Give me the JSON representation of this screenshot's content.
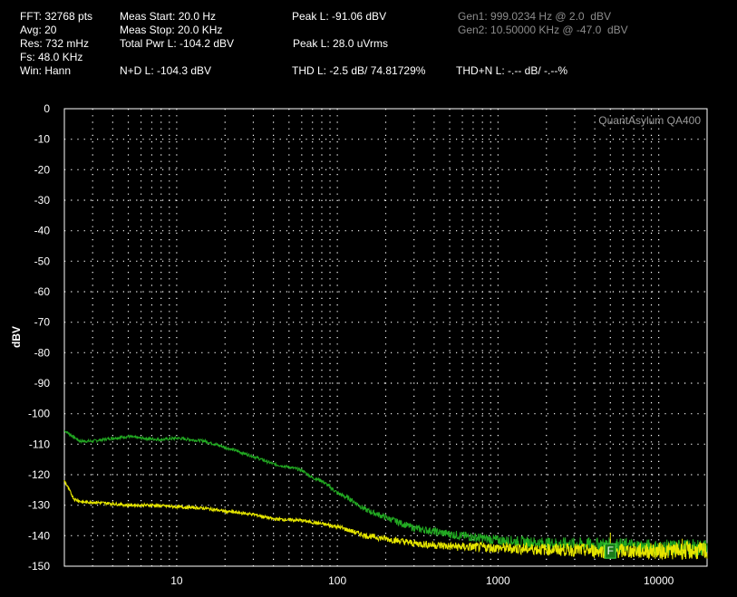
{
  "header": {
    "fft": "FFT: 32768 pts",
    "avg": "Avg: 20",
    "res": "Res: 732 mHz",
    "fs": "Fs: 48.0 KHz",
    "win": "Win: Hann",
    "meas_start": "Meas Start: 20.0 Hz",
    "meas_stop": "Meas Stop: 20.0 KHz",
    "total_pwr": "Total Pwr L: -104.2 dBV",
    "nd": "N+D L: -104.3 dBV",
    "peak_dbv": "Peak L: -91.06 dBV",
    "peak_uv": "Peak L: 28.0 uVrms",
    "thd": "THD L: -2.5 dB/ 74.81729%",
    "thdn": "THD+N L: -.-- dB/ -.--%",
    "gen1": "Gen1: 999.0234 Hz @ 2.0  dBV",
    "gen2": "Gen2: 10.50000 KHz @ -47.0  dBV"
  },
  "chart_data": {
    "type": "line",
    "brand": "QuantAsylum QA400",
    "ylabel": "dBV",
    "xlabel": "",
    "xscale": "log",
    "xlim": [
      2,
      20000
    ],
    "ylim": [
      -150,
      0
    ],
    "grid": true,
    "yticks": [
      "0",
      "-10",
      "-20",
      "-30",
      "-40",
      "-50",
      "-60",
      "-70",
      "-80",
      "-90",
      "-100",
      "-110",
      "-120",
      "-130",
      "-140",
      "-150"
    ],
    "xticks": [
      "10",
      "100",
      "1000",
      "10000"
    ],
    "colors": {
      "background": "#000000",
      "grid": "#ffffff",
      "upper_trace": "#22aa22",
      "lower_trace": "#e6e600",
      "marker": "#22aa22"
    },
    "series": [
      {
        "color": "#22aa22",
        "x": [
          2,
          2.5,
          3,
          4,
          5,
          6,
          8,
          10,
          15,
          20,
          30,
          40,
          50,
          60,
          70,
          80,
          90,
          100,
          120,
          150,
          200,
          300,
          500,
          1000,
          2000,
          5000,
          10000,
          20000
        ],
        "y": [
          -105.5,
          -109,
          -109,
          -108,
          -107.5,
          -108,
          -108.5,
          -108,
          -109,
          -111,
          -114,
          -116.5,
          -117.5,
          -118.5,
          -121,
          -122,
          -124,
          -126,
          -128,
          -131.5,
          -134,
          -137.5,
          -139.5,
          -141.5,
          -142.5,
          -143,
          -144,
          -144
        ]
      },
      {
        "color": "#e6e600",
        "x": [
          2,
          2.3,
          2.6,
          3,
          4,
          5,
          7,
          10,
          15,
          20,
          30,
          40,
          60,
          100,
          150,
          200,
          300,
          500,
          1000,
          2000,
          5000,
          10000,
          20000
        ],
        "y": [
          -122,
          -128,
          -129,
          -129,
          -129.5,
          -130,
          -130,
          -130.5,
          -131,
          -132,
          -133,
          -134.5,
          -135,
          -137,
          -140,
          -141,
          -142.5,
          -143.5,
          -144,
          -144.5,
          -145,
          -145,
          -145
        ]
      }
    ],
    "marker": {
      "label": "F",
      "x": 5000,
      "y": -145
    },
    "spurs": [
      {
        "x": 5000,
        "y": -139
      },
      {
        "x": 14000,
        "y": -141
      }
    ]
  }
}
